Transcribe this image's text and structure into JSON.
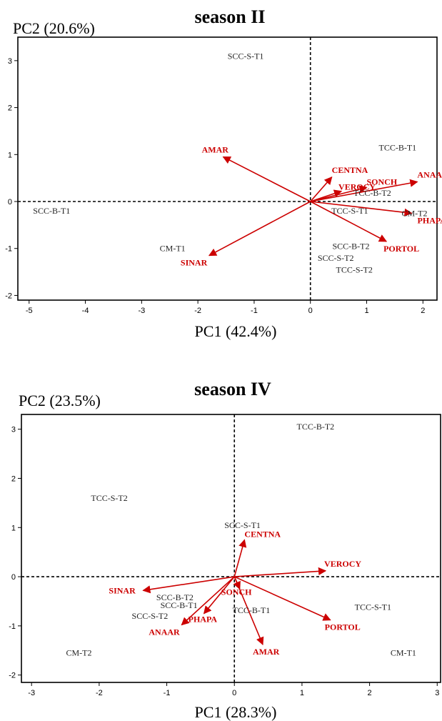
{
  "chart_data": [
    {
      "type": "scatter",
      "title": "season II",
      "xlabel": "PC1 (42.4%)",
      "ylabel": "PC2 (20.6%)",
      "xlim": [
        -5.2,
        2.25
      ],
      "ylim": [
        -2.1,
        3.5
      ],
      "xticks": [
        -5,
        -4,
        -3,
        -2,
        -1,
        0,
        1,
        2
      ],
      "yticks": [
        -2,
        -1,
        0,
        1,
        2,
        3
      ],
      "observations": [
        {
          "label": "SCC-S-T1",
          "x": -1.15,
          "y": 3.1
        },
        {
          "label": "TCC-B-T1",
          "x": 1.55,
          "y": 1.15
        },
        {
          "label": "SCC-B-T1",
          "x": -4.6,
          "y": -0.2
        },
        {
          "label": "TCC-B-T2",
          "x": 1.1,
          "y": 0.18
        },
        {
          "label": "TCC-S-T1",
          "x": 0.7,
          "y": -0.2
        },
        {
          "label": "CM-T2",
          "x": 1.85,
          "y": -0.25
        },
        {
          "label": "CM-T1",
          "x": -2.45,
          "y": -1.0
        },
        {
          "label": "SCC-B-T2",
          "x": 0.72,
          "y": -0.95
        },
        {
          "label": "SCC-S-T2",
          "x": 0.45,
          "y": -1.2
        },
        {
          "label": "TCC-S-T2",
          "x": 0.78,
          "y": -1.45
        }
      ],
      "loadings": [
        {
          "label": "AMAR",
          "x": -1.55,
          "y": 0.95
        },
        {
          "label": "CENTNA",
          "x": 0.38,
          "y": 0.52
        },
        {
          "label": "SONCH",
          "x": 1.0,
          "y": 0.3
        },
        {
          "label": "ANAAR",
          "x": 1.9,
          "y": 0.42
        },
        {
          "label": "VEROCY",
          "x": 0.55,
          "y": 0.22
        },
        {
          "label": "PHAPA",
          "x": 1.8,
          "y": -0.25
        },
        {
          "label": "PORTOL",
          "x": 1.35,
          "y": -0.85
        },
        {
          "label": "SINAR",
          "x": -1.8,
          "y": -1.15
        }
      ]
    },
    {
      "type": "scatter",
      "title": "season IV",
      "xlabel": "PC1 (28.3%)",
      "ylabel": "PC2 (23.5%)",
      "xlim": [
        -3.15,
        3.05
      ],
      "ylim": [
        -2.15,
        3.3
      ],
      "xticks": [
        -3,
        -2,
        -1,
        0,
        1,
        2,
        3
      ],
      "yticks": [
        -2,
        -1,
        0,
        1,
        2,
        3
      ],
      "observations": [
        {
          "label": "TCC-B-T2",
          "x": 1.2,
          "y": 3.05
        },
        {
          "label": "TCC-S-T2",
          "x": -1.85,
          "y": 1.6
        },
        {
          "label": "SCC-S-T1",
          "x": 0.12,
          "y": 1.05
        },
        {
          "label": "SCC-B-T2",
          "x": -0.88,
          "y": -0.42
        },
        {
          "label": "SCC-B-T1",
          "x": -0.82,
          "y": -0.58
        },
        {
          "label": "TCC-B-T1",
          "x": 0.25,
          "y": -0.68
        },
        {
          "label": "TCC-S-T1",
          "x": 2.05,
          "y": -0.62
        },
        {
          "label": "SCC-S-T2",
          "x": -1.25,
          "y": -0.8
        },
        {
          "label": "CM-T2",
          "x": -2.3,
          "y": -1.55
        },
        {
          "label": "CM-T1",
          "x": 2.5,
          "y": -1.55
        }
      ],
      "loadings": [
        {
          "label": "CENTNA",
          "x": 0.15,
          "y": 0.75
        },
        {
          "label": "VEROCY",
          "x": 1.35,
          "y": 0.12
        },
        {
          "label": "SINAR",
          "x": -1.35,
          "y": -0.28
        },
        {
          "label": "SONCH",
          "x": 0.08,
          "y": -0.25
        },
        {
          "label": "PHAPA",
          "x": -0.45,
          "y": -0.75
        },
        {
          "label": "ANAAR",
          "x": -0.78,
          "y": -0.98
        },
        {
          "label": "PORTOL",
          "x": 1.42,
          "y": -0.88
        },
        {
          "label": "AMAR",
          "x": 0.42,
          "y": -1.38
        }
      ]
    }
  ]
}
